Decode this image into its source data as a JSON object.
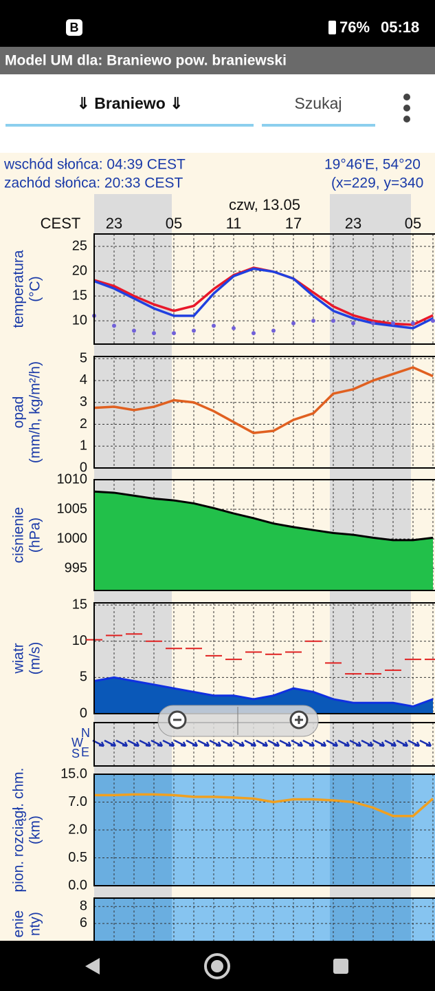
{
  "status_bar": {
    "app_icon": "B",
    "battery": "76%",
    "time": "05:18"
  },
  "app_bar": {
    "title": "Model UM dla: Braniewo  pow. braniewski"
  },
  "tabs": {
    "location": "⇓ Braniewo ⇓",
    "search": "Szukaj"
  },
  "info": {
    "sunrise": "wschód słońca: 04:39 CEST",
    "sunset": "zachód słońca: 20:33 CEST",
    "coords": "19°46'E, 54°20",
    "grid": "(x=229,  y=340"
  },
  "meteogram": {
    "date": "czw, 13.05",
    "timezone": "CEST",
    "hours": [
      "23",
      "05",
      "11",
      "17",
      "23",
      "05"
    ],
    "panels": [
      {
        "labels": [
          "temperatura",
          "(°C)"
        ],
        "ylim": [
          5.3,
          27.5
        ],
        "yticks": [
          10,
          15,
          20,
          25
        ],
        "series": [
          {
            "style": "line",
            "color": "#e8182a",
            "values": [
              18.2,
              17,
              15,
              13.3,
              12,
              13,
              16.4,
              19.2,
              20.7,
              19.9,
              18.5,
              15.7,
              12.9,
              11.1,
              10,
              9.4,
              9.2,
              11.1
            ]
          },
          {
            "style": "line",
            "color": "#2040e0",
            "values": [
              18,
              16.5,
              14.5,
              12.5,
              11,
              11,
              15.5,
              19,
              20.5,
              19.9,
              18.5,
              15,
              12,
              10.5,
              9.5,
              9,
              8.5,
              10.5
            ]
          },
          {
            "style": "dots",
            "color": "#7060d8",
            "values": [
              11,
              9,
              8,
              7.5,
              7.5,
              8,
              9,
              8.5,
              7.5,
              8,
              9.5,
              10,
              10,
              9.5,
              9.5,
              9.5,
              9.5,
              10
            ]
          }
        ]
      },
      {
        "labels": [
          "opad",
          "(mm/h, kg/m²/h)"
        ],
        "ylim": [
          0,
          5.1
        ],
        "yticks": [
          0,
          1,
          2,
          3,
          4,
          5
        ],
        "series": [
          {
            "style": "line",
            "color": "#e06020",
            "values": [
              2.75,
              2.8,
              2.65,
              2.8,
              3.1,
              3,
              2.6,
              2.1,
              1.6,
              1.7,
              2.2,
              2.5,
              3.4,
              3.6,
              4,
              4.3,
              4.6,
              4.2
            ]
          }
        ]
      },
      {
        "labels": [
          "ciśnienie",
          "(hPa)"
        ],
        "ylim": [
          991.3,
          1010
        ],
        "yticks": [
          995,
          1000,
          1005,
          1010
        ],
        "series": [
          {
            "style": "area",
            "color": "#22c04a",
            "values": [
              1008,
              1007.8,
              1007.3,
              1006.8,
              1006.5,
              1006,
              1005.2,
              1004.3,
              1003.5,
              1002.6,
              1002,
              1001.5,
              1001,
              1000.7,
              1000.2,
              999.8,
              999.8,
              1000.2
            ]
          }
        ]
      },
      {
        "labels": [
          "wiatr",
          "(m/s)"
        ],
        "ylim": [
          0,
          15.3
        ],
        "yticks": [
          0,
          5,
          10,
          15
        ],
        "series": [
          {
            "style": "area",
            "color": "#0a58b8",
            "values": [
              4.5,
              5,
              4.5,
              4,
              3.5,
              3,
              2.5,
              2.5,
              2,
              2.5,
              3.5,
              3,
              2,
              1.5,
              1.5,
              1.5,
              1,
              2
            ]
          },
          {
            "style": "dash",
            "color": "#e02020",
            "values": [
              10.2,
              10.8,
              11,
              10,
              9,
              9,
              8,
              7.5,
              8.5,
              8.2,
              8.5,
              10,
              7,
              5.5,
              5.5,
              6,
              7.5,
              7.5
            ]
          }
        ]
      },
      {
        "labels": [
          "W",
          "N",
          "S",
          "E"
        ]
      },
      {
        "labels": [
          "pion. rozciągł. chm.",
          "(km)"
        ],
        "scale": "piecewise",
        "ylim": [
          0,
          15
        ],
        "yticks": [
          {
            "value": 15,
            "label": "15.0"
          },
          {
            "value": 7,
            "label": "7.0"
          },
          {
            "value": 2,
            "label": "2.0"
          },
          {
            "value": 0.5,
            "label": "0.5"
          },
          {
            "value": 0,
            "label": "0.0"
          }
        ],
        "series": [
          {
            "style": "line",
            "color": "#f0a020",
            "values": [
              9,
              9,
              9.2,
              9.2,
              9,
              8.5,
              8.5,
              8.3,
              8,
              7,
              7.8,
              7.8,
              7.5,
              7,
              6,
              4.5,
              4.5,
              8
            ]
          }
        ]
      },
      {
        "labels": [
          "enie",
          "nty)"
        ],
        "ylim": [
          2.9,
          9
        ],
        "yticks": [
          6,
          8
        ]
      }
    ]
  }
}
